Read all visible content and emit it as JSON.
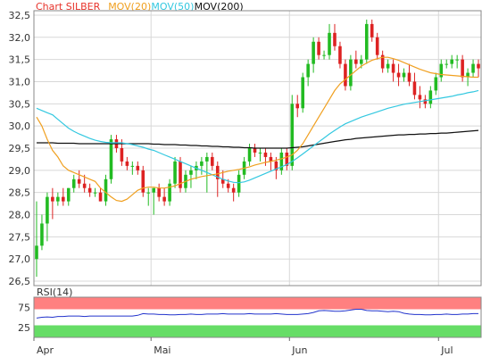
{
  "chart_data": [
    {
      "type": "candlestick",
      "legend": [
        {
          "label": "Chart SILBER",
          "color": "#e8332b"
        },
        {
          "label": "MOV(20)",
          "color": "#f0a020"
        },
        {
          "label": "MOV(50)",
          "color": "#33c8e0"
        },
        {
          "label": "MOV(200)",
          "color": "#111111"
        }
      ],
      "ylim": [
        26.4,
        32.6
      ],
      "yticks": [
        "26,5",
        "27,0",
        "27,5",
        "28,0",
        "28,5",
        "29,0",
        "29,5",
        "30,0",
        "30,5",
        "31,0",
        "31,5",
        "32,0",
        "32,5"
      ],
      "ytick_values": [
        26.5,
        27.0,
        27.5,
        28.0,
        28.5,
        29.0,
        29.5,
        30.0,
        30.5,
        31.0,
        31.5,
        32.0,
        32.5
      ],
      "x_axis": {
        "labels": [
          "Apr",
          "Mai",
          "Jun",
          "Jul"
        ],
        "label_index": [
          0,
          22,
          48,
          76
        ],
        "count": 84
      },
      "candles": [
        [
          27.0,
          28.3,
          26.6,
          27.3
        ],
        [
          27.3,
          28.0,
          27.2,
          27.8
        ],
        [
          27.8,
          28.5,
          27.4,
          28.4
        ],
        [
          28.4,
          28.6,
          27.9,
          28.3
        ],
        [
          28.3,
          28.5,
          28.2,
          28.4
        ],
        [
          28.4,
          28.6,
          28.2,
          28.3
        ],
        [
          28.3,
          28.6,
          28.2,
          28.6
        ],
        [
          28.6,
          28.9,
          28.5,
          28.8
        ],
        [
          28.8,
          29.0,
          28.6,
          28.7
        ],
        [
          28.7,
          28.9,
          28.5,
          28.6
        ],
        [
          28.6,
          28.7,
          28.4,
          28.5
        ],
        [
          28.5,
          28.6,
          28.4,
          28.5
        ],
        [
          28.5,
          28.6,
          28.3,
          28.3
        ],
        [
          28.3,
          28.9,
          28.2,
          28.8
        ],
        [
          28.8,
          29.8,
          28.7,
          29.7
        ],
        [
          29.7,
          29.8,
          29.4,
          29.5
        ],
        [
          29.5,
          29.7,
          29.1,
          29.2
        ],
        [
          29.2,
          29.3,
          29.0,
          29.1
        ],
        [
          29.1,
          29.2,
          28.9,
          29.1
        ],
        [
          29.1,
          29.2,
          28.9,
          29.0
        ],
        [
          29.0,
          29.1,
          28.4,
          28.5
        ],
        [
          28.5,
          28.6,
          28.2,
          28.5
        ],
        [
          28.5,
          28.6,
          28.0,
          28.6
        ],
        [
          28.6,
          28.7,
          28.3,
          28.4
        ],
        [
          28.4,
          28.6,
          28.2,
          28.3
        ],
        [
          28.3,
          28.8,
          28.2,
          28.7
        ],
        [
          28.7,
          29.3,
          28.6,
          29.2
        ],
        [
          29.2,
          29.3,
          28.5,
          28.6
        ],
        [
          28.6,
          29.0,
          28.5,
          28.9
        ],
        [
          28.9,
          29.1,
          28.6,
          29.0
        ],
        [
          29.0,
          29.2,
          28.8,
          29.1
        ],
        [
          29.1,
          29.3,
          28.9,
          29.2
        ],
        [
          29.2,
          29.4,
          28.5,
          29.3
        ],
        [
          29.3,
          29.4,
          29.0,
          29.1
        ],
        [
          29.1,
          29.2,
          28.4,
          28.8
        ],
        [
          28.8,
          29.0,
          28.6,
          28.7
        ],
        [
          28.7,
          28.8,
          28.5,
          28.6
        ],
        [
          28.6,
          28.7,
          28.3,
          28.5
        ],
        [
          28.5,
          29.0,
          28.4,
          28.9
        ],
        [
          28.9,
          29.3,
          28.8,
          29.2
        ],
        [
          29.2,
          29.6,
          29.1,
          29.5
        ],
        [
          29.5,
          29.6,
          29.3,
          29.4
        ],
        [
          29.4,
          29.5,
          29.2,
          29.4
        ],
        [
          29.4,
          29.5,
          29.1,
          29.3
        ],
        [
          29.3,
          29.4,
          29.0,
          29.2
        ],
        [
          29.2,
          29.3,
          28.8,
          29.0
        ],
        [
          29.0,
          29.5,
          28.9,
          29.4
        ],
        [
          29.4,
          29.5,
          29.0,
          29.1
        ],
        [
          29.1,
          30.7,
          29.0,
          30.5
        ],
        [
          30.5,
          30.7,
          30.2,
          30.4
        ],
        [
          30.4,
          31.2,
          30.3,
          31.1
        ],
        [
          31.1,
          31.5,
          30.9,
          31.4
        ],
        [
          31.4,
          32.0,
          31.2,
          31.9
        ],
        [
          31.9,
          32.0,
          31.5,
          31.6
        ],
        [
          31.6,
          31.7,
          31.5,
          31.6
        ],
        [
          31.6,
          32.3,
          31.5,
          32.1
        ],
        [
          32.1,
          32.3,
          31.7,
          31.8
        ],
        [
          31.8,
          31.9,
          31.3,
          31.4
        ],
        [
          31.4,
          31.5,
          30.8,
          30.9
        ],
        [
          30.9,
          31.6,
          30.8,
          31.5
        ],
        [
          31.5,
          31.7,
          31.3,
          31.4
        ],
        [
          31.4,
          31.6,
          31.3,
          31.5
        ],
        [
          31.5,
          32.4,
          31.4,
          32.3
        ],
        [
          32.3,
          32.4,
          31.9,
          32.0
        ],
        [
          32.0,
          32.1,
          31.5,
          31.6
        ],
        [
          31.6,
          31.7,
          31.2,
          31.3
        ],
        [
          31.3,
          31.5,
          31.2,
          31.4
        ],
        [
          31.4,
          31.5,
          31.0,
          31.2
        ],
        [
          31.2,
          31.4,
          30.9,
          31.1
        ],
        [
          31.1,
          31.3,
          31.0,
          31.2
        ],
        [
          31.2,
          31.4,
          30.9,
          31.0
        ],
        [
          31.0,
          31.2,
          30.6,
          30.7
        ],
        [
          30.7,
          30.9,
          30.4,
          30.6
        ],
        [
          30.6,
          30.7,
          30.4,
          30.5
        ],
        [
          30.5,
          30.9,
          30.4,
          30.8
        ],
        [
          30.8,
          31.2,
          30.7,
          31.1
        ],
        [
          31.1,
          31.5,
          31.0,
          31.4
        ],
        [
          31.4,
          31.5,
          31.3,
          31.4
        ],
        [
          31.4,
          31.6,
          31.3,
          31.5
        ],
        [
          31.5,
          31.6,
          31.3,
          31.5
        ],
        [
          31.5,
          31.6,
          31.0,
          31.1
        ],
        [
          31.1,
          31.3,
          30.9,
          31.2
        ],
        [
          31.2,
          31.5,
          31.1,
          31.4
        ],
        [
          31.4,
          31.5,
          31.1,
          31.3
        ]
      ],
      "mov20": [
        30.2,
        30.0,
        29.7,
        29.45,
        29.3,
        29.1,
        29.0,
        28.95,
        28.9,
        28.85,
        28.8,
        28.75,
        28.6,
        28.5,
        28.4,
        28.32,
        28.3,
        28.35,
        28.45,
        28.55,
        28.6,
        28.62,
        28.62,
        28.6,
        28.6,
        28.62,
        28.65,
        28.7,
        28.75,
        28.8,
        28.83,
        28.86,
        28.88,
        28.9,
        28.92,
        28.95,
        28.98,
        29.0,
        29.02,
        29.05,
        29.08,
        29.12,
        29.15,
        29.18,
        29.2,
        29.23,
        29.26,
        29.3,
        29.35,
        29.45,
        29.6,
        29.8,
        30.0,
        30.2,
        30.4,
        30.6,
        30.8,
        30.95,
        31.05,
        31.15,
        31.25,
        31.35,
        31.42,
        31.48,
        31.52,
        31.55,
        31.55,
        31.52,
        31.48,
        31.43,
        31.38,
        31.33,
        31.28,
        31.24,
        31.2,
        31.18,
        31.16,
        31.15,
        31.14,
        31.13,
        31.12,
        31.11,
        31.1,
        31.1
      ],
      "mov50": [
        30.4,
        30.35,
        30.3,
        30.25,
        30.15,
        30.05,
        29.95,
        29.88,
        29.82,
        29.77,
        29.72,
        29.68,
        29.65,
        29.63,
        29.62,
        29.62,
        29.62,
        29.6,
        29.58,
        29.55,
        29.52,
        29.48,
        29.45,
        29.4,
        29.35,
        29.3,
        29.25,
        29.2,
        29.15,
        29.1,
        29.05,
        29.0,
        28.95,
        28.9,
        28.85,
        28.8,
        28.76,
        28.73,
        28.72,
        28.74,
        28.78,
        28.83,
        28.88,
        28.93,
        28.98,
        29.03,
        29.08,
        29.13,
        29.2,
        29.28,
        29.37,
        29.46,
        29.55,
        29.64,
        29.73,
        29.82,
        29.9,
        29.98,
        30.05,
        30.1,
        30.15,
        30.2,
        30.24,
        30.28,
        30.32,
        30.36,
        30.4,
        30.43,
        30.46,
        30.49,
        30.51,
        30.53,
        30.55,
        30.57,
        30.59,
        30.61,
        30.63,
        30.65,
        30.67,
        30.7,
        30.72,
        30.75,
        30.77,
        30.8
      ],
      "mov200": [
        29.62,
        29.62,
        29.62,
        29.62,
        29.61,
        29.61,
        29.61,
        29.61,
        29.6,
        29.6,
        29.6,
        29.6,
        29.6,
        29.6,
        29.6,
        29.6,
        29.6,
        29.6,
        29.6,
        29.6,
        29.6,
        29.6,
        29.59,
        29.59,
        29.58,
        29.58,
        29.58,
        29.57,
        29.57,
        29.56,
        29.56,
        29.55,
        29.55,
        29.54,
        29.54,
        29.53,
        29.53,
        29.52,
        29.52,
        29.51,
        29.51,
        29.5,
        29.5,
        29.5,
        29.5,
        29.5,
        29.5,
        29.5,
        29.51,
        29.52,
        29.53,
        29.55,
        29.57,
        29.59,
        29.61,
        29.63,
        29.65,
        29.67,
        29.69,
        29.7,
        29.72,
        29.73,
        29.74,
        29.75,
        29.76,
        29.77,
        29.78,
        29.79,
        29.8,
        29.8,
        29.81,
        29.81,
        29.82,
        29.82,
        29.83,
        29.83,
        29.84,
        29.84,
        29.85,
        29.86,
        29.87,
        29.88,
        29.89,
        29.9
      ]
    },
    {
      "type": "line",
      "label": "RSI(14)",
      "ylim": [
        0,
        100
      ],
      "yticks": [
        "75",
        "25"
      ],
      "ytick_values": [
        75,
        25
      ],
      "overbought_band": [
        70,
        100
      ],
      "oversold_band": [
        0,
        30
      ],
      "band_colors": {
        "overbought": "#ff8080",
        "oversold": "#66dd66"
      },
      "line_color": "#2233cc",
      "values": [
        48,
        50,
        51,
        50,
        52,
        52,
        53,
        53,
        53,
        52,
        53,
        53,
        53,
        53,
        53,
        53,
        53,
        53,
        53,
        55,
        59,
        58,
        58,
        57,
        57,
        56,
        56,
        57,
        57,
        58,
        57,
        57,
        58,
        58,
        58,
        59,
        58,
        58,
        58,
        58,
        59,
        58,
        58,
        58,
        58,
        59,
        58,
        57,
        57,
        57,
        58,
        59,
        62,
        66,
        67,
        66,
        65,
        65,
        66,
        68,
        70,
        70,
        67,
        66,
        66,
        65,
        64,
        65,
        64,
        60,
        58,
        57,
        57,
        56,
        56,
        57,
        57,
        58,
        57,
        57,
        58,
        58,
        59,
        59
      ]
    }
  ]
}
